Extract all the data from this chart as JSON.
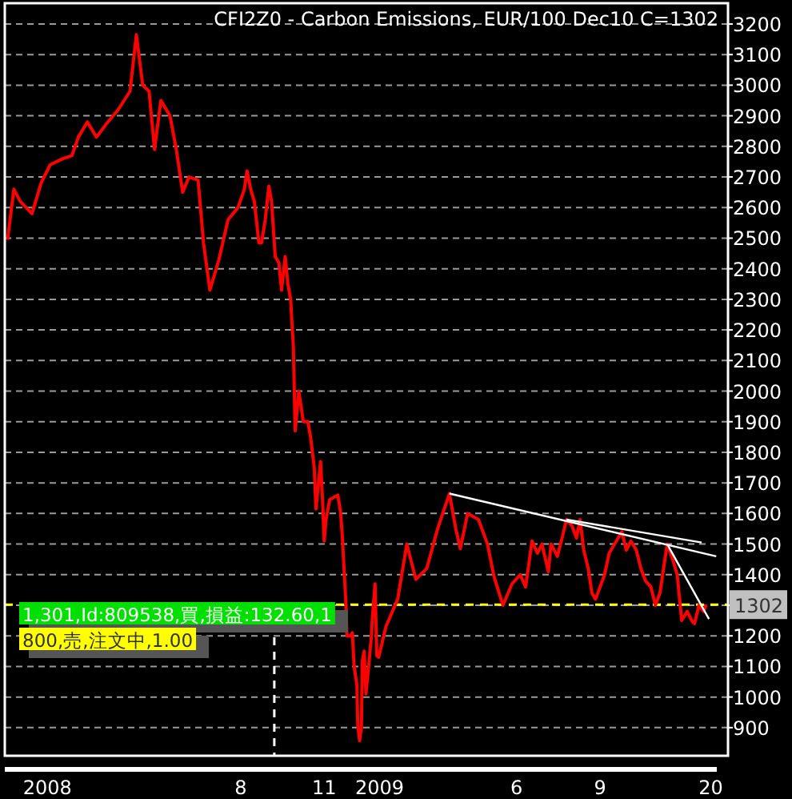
{
  "chart_data": {
    "type": "line",
    "title": "CFI2Z0 - Carbon Emissions, EUR/100 Dec10 C=1302",
    "series": [
      {
        "color": "#ff0000",
        "x": [
          "2007-11-18",
          "2007-11-25",
          "2007-12-02",
          "2007-12-15",
          "2007-12-25",
          "2008-01-04",
          "2008-01-18",
          "2008-01-28",
          "2008-02-04",
          "2008-02-14",
          "2008-02-24",
          "2008-03-05",
          "2008-03-19",
          "2008-04-01",
          "2008-04-08",
          "2008-04-15",
          "2008-04-22",
          "2008-04-28",
          "2008-05-05",
          "2008-05-15",
          "2008-05-22",
          "2008-05-29",
          "2008-06-05",
          "2008-06-15",
          "2008-06-21",
          "2008-06-28",
          "2008-07-08",
          "2008-07-18",
          "2008-07-29",
          "2008-08-05",
          "2008-08-08",
          "2008-08-12",
          "2008-08-16",
          "2008-08-21",
          "2008-08-24",
          "2008-08-28",
          "2008-09-01",
          "2008-09-04",
          "2008-09-08",
          "2008-09-12",
          "2008-09-15",
          "2008-09-19",
          "2008-09-22",
          "2008-09-25",
          "2008-09-28",
          "2008-09-30",
          "2008-10-04",
          "2008-10-09",
          "2008-10-14",
          "2008-10-17",
          "2008-10-21",
          "2008-10-23",
          "2008-10-28",
          "2008-10-30",
          "2008-11-01",
          "2008-11-03",
          "2008-11-07",
          "2008-11-13",
          "2008-11-16",
          "2008-11-19",
          "2008-11-21",
          "2008-11-23",
          "2008-11-25",
          "2008-11-26",
          "2008-11-30",
          "2008-12-02",
          "2008-12-04",
          "2008-12-07",
          "2008-12-08",
          "2008-12-10",
          "2008-12-12",
          "2008-12-13",
          "2008-12-15",
          "2008-12-17",
          "2008-12-20",
          "2008-12-23",
          "2008-12-24",
          "2008-12-27",
          "2008-12-29",
          "2008-12-31",
          "2009-01-08",
          "2009-01-21",
          "2009-01-31",
          "2009-02-10",
          "2009-02-22",
          "2009-03-06",
          "2009-03-19",
          "2009-03-26",
          "2009-03-31",
          "2009-04-08",
          "2009-04-20",
          "2009-04-30",
          "2009-05-07",
          "2009-05-17",
          "2009-05-27",
          "2009-06-05",
          "2009-06-11",
          "2009-06-18",
          "2009-06-24",
          "2009-06-29",
          "2009-07-06",
          "2009-07-09",
          "2009-07-16",
          "2009-07-22",
          "2009-07-26",
          "2009-08-01",
          "2009-08-06",
          "2009-08-10",
          "2009-08-14",
          "2009-08-19",
          "2009-08-23",
          "2009-08-27",
          "2009-09-01",
          "2009-09-06",
          "2009-09-11",
          "2009-09-17",
          "2009-09-25",
          "2009-09-30",
          "2009-10-05",
          "2009-10-11",
          "2009-10-16",
          "2009-10-21",
          "2009-10-27",
          "2009-11-01",
          "2009-11-06",
          "2009-11-14",
          "2009-11-20",
          "2009-11-25",
          "2009-11-30",
          "2009-12-06",
          "2009-12-11",
          "2009-12-14",
          "2009-12-19",
          "2009-12-24",
          "2009-12-27"
        ],
        "values": [
          2495,
          2660,
          2620,
          2580,
          2680,
          2740,
          2760,
          2770,
          2830,
          2880,
          2830,
          2870,
          2920,
          2980,
          3165,
          3000,
          2980,
          2790,
          2950,
          2900,
          2790,
          2650,
          2700,
          2690,
          2485,
          2330,
          2430,
          2560,
          2600,
          2660,
          2720,
          2660,
          2620,
          2485,
          2485,
          2560,
          2670,
          2620,
          2440,
          2420,
          2330,
          2440,
          2350,
          2300,
          2145,
          1870,
          2000,
          1900,
          1900,
          1850,
          1750,
          1615,
          1770,
          1655,
          1510,
          1580,
          1645,
          1655,
          1660,
          1605,
          1525,
          1410,
          1305,
          1200,
          1200,
          1210,
          1100,
          1040,
          910,
          857,
          900,
          1118,
          1150,
          1010,
          1100,
          1200,
          1255,
          1370,
          1135,
          1130,
          1230,
          1320,
          1500,
          1385,
          1420,
          1550,
          1665,
          1550,
          1485,
          1600,
          1580,
          1500,
          1395,
          1300,
          1370,
          1400,
          1360,
          1510,
          1470,
          1500,
          1410,
          1500,
          1460,
          1530,
          1580,
          1560,
          1520,
          1580,
          1480,
          1420,
          1340,
          1320,
          1360,
          1400,
          1470,
          1500,
          1540,
          1480,
          1510,
          1480,
          1420,
          1380,
          1360,
          1300,
          1340,
          1500,
          1450,
          1400,
          1250,
          1280,
          1250,
          1240,
          1300,
          1280,
          1302
        ]
      },
      {
        "type": "line",
        "color": "#ffffff",
        "x": [
          "2009-03-19",
          "2010-01-07"
        ],
        "values": [
          1665,
          1460
        ]
      },
      {
        "type": "line",
        "color": "#ffffff",
        "x": [
          "2009-07-26",
          "2009-12-22"
        ],
        "values": [
          1580,
          1505
        ]
      },
      {
        "type": "line",
        "color": "#ffffff",
        "x": [
          "2009-11-14",
          "2009-12-30"
        ],
        "values": [
          1500,
          1255
        ]
      }
    ],
    "xlim": [
      "2007-11-15",
      "2010-01-20"
    ],
    "ylim": [
      808,
      3268
    ],
    "xticks": [
      {
        "value": "2008-01-01",
        "label": "2008"
      },
      {
        "value": "2008-08-01",
        "label": "8"
      },
      {
        "value": "2008-11-01",
        "label": "11"
      },
      {
        "value": "2009-01-01",
        "label": "2009"
      },
      {
        "value": "2009-06-01",
        "label": "6"
      },
      {
        "value": "2009-09-01",
        "label": "9"
      },
      {
        "value": "2010-01-01",
        "label": "20"
      }
    ],
    "yticks": [
      900,
      1000,
      1100,
      1200,
      {
        "value": 1300,
        "label": null
      },
      1400,
      1500,
      1600,
      1700,
      1800,
      1900,
      2000,
      2100,
      2200,
      2300,
      2400,
      2500,
      2600,
      2700,
      2800,
      2900,
      3000,
      3100,
      3200
    ],
    "grid": "y",
    "ref_lines": [
      {
        "axis": "y",
        "value": 1302,
        "label": "1302",
        "color": "#ffff00",
        "line_style": "dashed"
      },
      {
        "axis": "x",
        "value": "2008-09-07",
        "color": "#ffffff",
        "line_style": "dashed"
      }
    ],
    "annotations": [
      "1,301,Id:809538,買,損益:132.60,1",
      "800,売,注文中,1.00"
    ]
  }
}
